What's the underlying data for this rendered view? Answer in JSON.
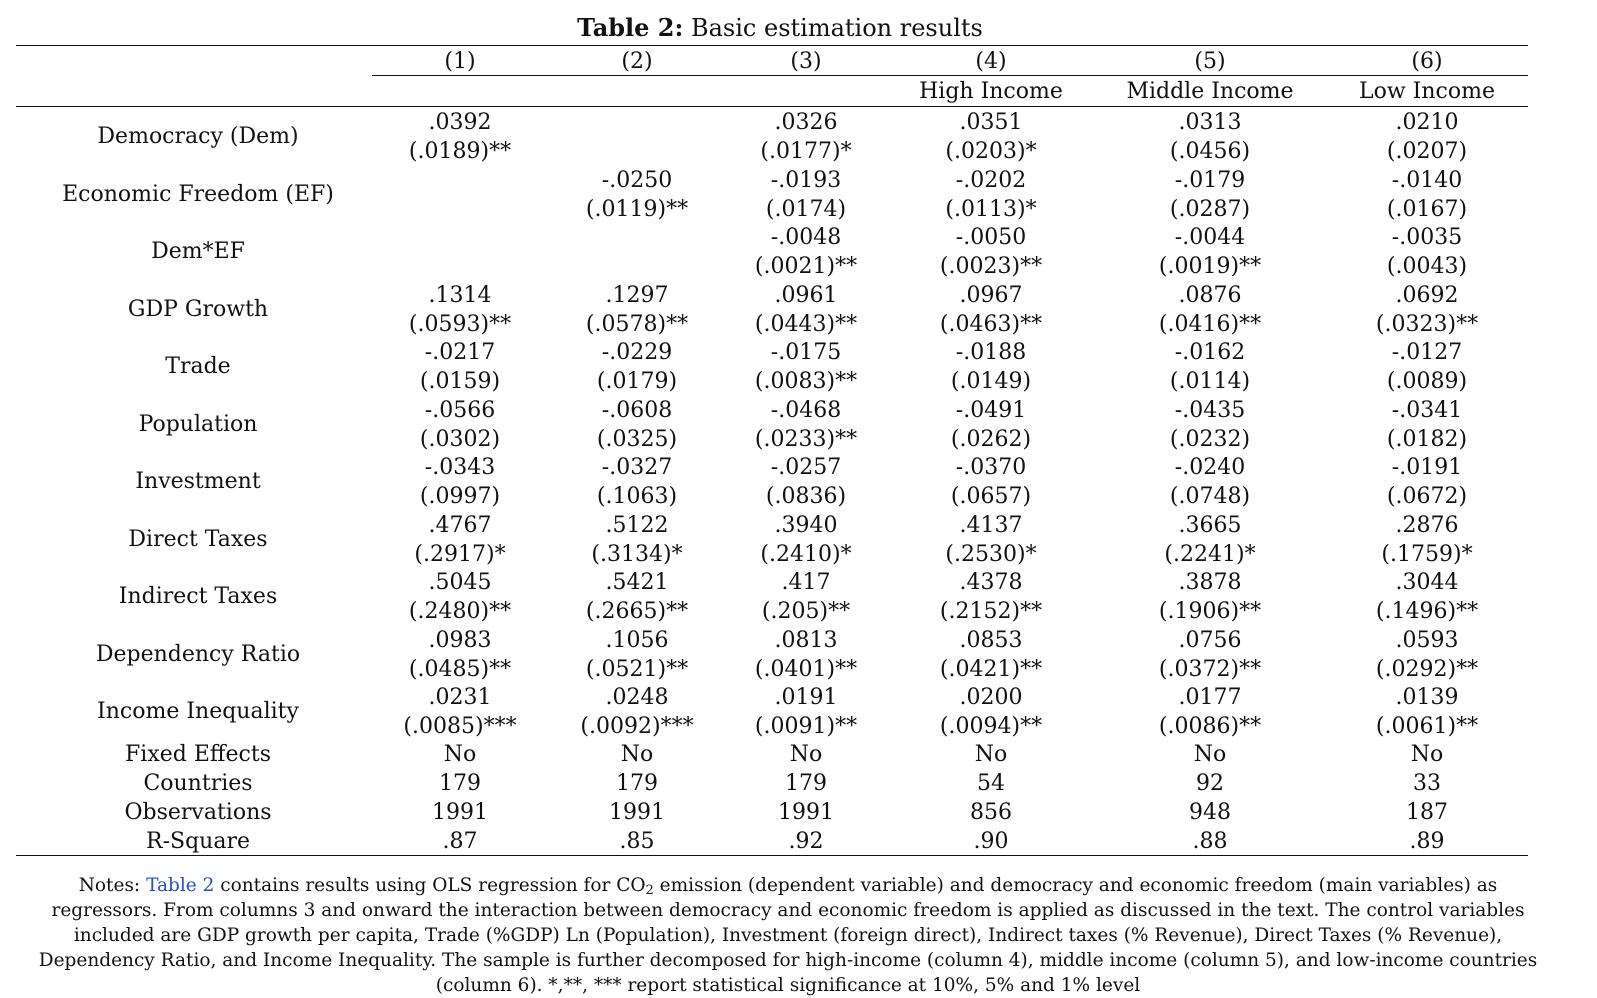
{
  "title": {
    "label": "Table 2:",
    "text": "Basic estimation results"
  },
  "columns": [
    {
      "number": "(1)",
      "subhead": ""
    },
    {
      "number": "(2)",
      "subhead": ""
    },
    {
      "number": "(3)",
      "subhead": ""
    },
    {
      "number": "(4)",
      "subhead": "High Income"
    },
    {
      "number": "(5)",
      "subhead": "Middle Income"
    },
    {
      "number": "(6)",
      "subhead": "Low Income"
    }
  ],
  "coef_rows": [
    {
      "label": "Democracy (Dem)",
      "coef": [
        ".0392",
        "",
        ".0326",
        ".0351",
        ".0313",
        ".0210"
      ],
      "se": [
        "(.0189)**",
        "",
        "(.0177)*",
        "(.0203)*",
        "(.0456)",
        "(.0207)"
      ]
    },
    {
      "label": "Economic Freedom (EF)",
      "coef": [
        "",
        "-.0250",
        "-.0193",
        "-.0202",
        "-.0179",
        "-.0140"
      ],
      "se": [
        "",
        "(.0119)**",
        "(.0174)",
        "(.0113)*",
        "(.0287)",
        "(.0167)"
      ]
    },
    {
      "label": "Dem*EF",
      "coef": [
        "",
        "",
        "-.0048",
        "-.0050",
        "-.0044",
        "-.0035"
      ],
      "se": [
        "",
        "",
        "(.0021)**",
        "(.0023)**",
        "(.0019)**",
        "(.0043)"
      ]
    },
    {
      "label": "GDP Growth",
      "coef": [
        ".1314",
        ".1297",
        ".0961",
        ".0967",
        ".0876",
        ".0692"
      ],
      "se": [
        "(.0593)**",
        "(.0578)**",
        "(.0443)**",
        "(.0463)**",
        "(.0416)**",
        "(.0323)**"
      ]
    },
    {
      "label": "Trade",
      "coef": [
        "-.0217",
        "-.0229",
        "-.0175",
        "-.0188",
        "-.0162",
        "-.0127"
      ],
      "se": [
        "(.0159)",
        "(.0179)",
        "(.0083)**",
        "(.0149)",
        "(.0114)",
        "(.0089)"
      ]
    },
    {
      "label": "Population",
      "coef": [
        "-.0566",
        "-.0608",
        "-.0468",
        "-.0491",
        "-.0435",
        "-.0341"
      ],
      "se": [
        "(.0302)",
        "(.0325)",
        "(.0233)**",
        "(.0262)",
        "(.0232)",
        "(.0182)"
      ]
    },
    {
      "label": "Investment",
      "coef": [
        "-.0343",
        "-.0327",
        "-.0257",
        "-.0370",
        "-.0240",
        "-.0191"
      ],
      "se": [
        "(.0997)",
        "(.1063)",
        "(.0836)",
        "(.0657)",
        "(.0748)",
        "(.0672)"
      ]
    },
    {
      "label": "Direct Taxes",
      "coef": [
        ".4767",
        ".5122",
        ".3940",
        ".4137",
        ".3665",
        ".2876"
      ],
      "se": [
        "(.2917)*",
        "(.3134)*",
        "(.2410)*",
        "(.2530)*",
        "(.2241)*",
        "(.1759)*"
      ]
    },
    {
      "label": "Indirect Taxes",
      "coef": [
        ".5045",
        ".5421",
        ".417",
        ".4378",
        ".3878",
        ".3044"
      ],
      "se": [
        "(.2480)**",
        "(.2665)**",
        "(.205)**",
        "(.2152)**",
        "(.1906)**",
        "(.1496)**"
      ]
    },
    {
      "label": "Dependency Ratio",
      "coef": [
        ".0983",
        ".1056",
        ".0813",
        ".0853",
        ".0756",
        ".0593"
      ],
      "se": [
        "(.0485)**",
        "(.0521)**",
        "(.0401)**",
        "(.0421)**",
        "(.0372)**",
        "(.0292)**"
      ]
    },
    {
      "label": "Income Inequality",
      "coef": [
        ".0231",
        ".0248",
        ".0191",
        ".0200",
        ".0177",
        ".0139"
      ],
      "se": [
        "(.0085)***",
        "(.0092)***",
        "(.0091)**",
        "(.0094)**",
        "(.0086)**",
        "(.0061)**"
      ]
    }
  ],
  "stat_rows": [
    {
      "label": "Fixed Effects",
      "values": [
        "No",
        "No",
        "No",
        "No",
        "No",
        "No"
      ]
    },
    {
      "label": "Countries",
      "values": [
        "179",
        "179",
        "179",
        "54",
        "92",
        "33"
      ]
    },
    {
      "label": "Observations",
      "values": [
        "1991",
        "1991",
        "1991",
        "856",
        "948",
        "187"
      ]
    },
    {
      "label": "R-Square",
      "values": [
        ".87",
        ".85",
        ".92",
        ".90",
        ".88",
        ".89"
      ]
    }
  ],
  "notes": {
    "prefix": "Notes: ",
    "link": "Table 2",
    "part1": " contains results using OLS regression for CO",
    "sub": "2",
    "part2": " emission (dependent variable) and democracy and economic freedom (main variables) as regressors. From columns 3 and onward the interaction between democracy and economic freedom is applied as discussed in the text. The control variables included are GDP growth per capita, Trade (%GDP) Ln (Population), Investment (foreign direct), Indirect taxes (% Revenue), Direct Taxes (% Revenue), Dependency Ratio, and Income Inequality. The sample is further decomposed for high-income (column 4), middle income (column 5), and low-income countries (column 6). *,**, *** report statistical significance at 10%, 5% and 1% level"
  },
  "colors": {
    "text": "#111111",
    "link": "#1f4fd1"
  }
}
